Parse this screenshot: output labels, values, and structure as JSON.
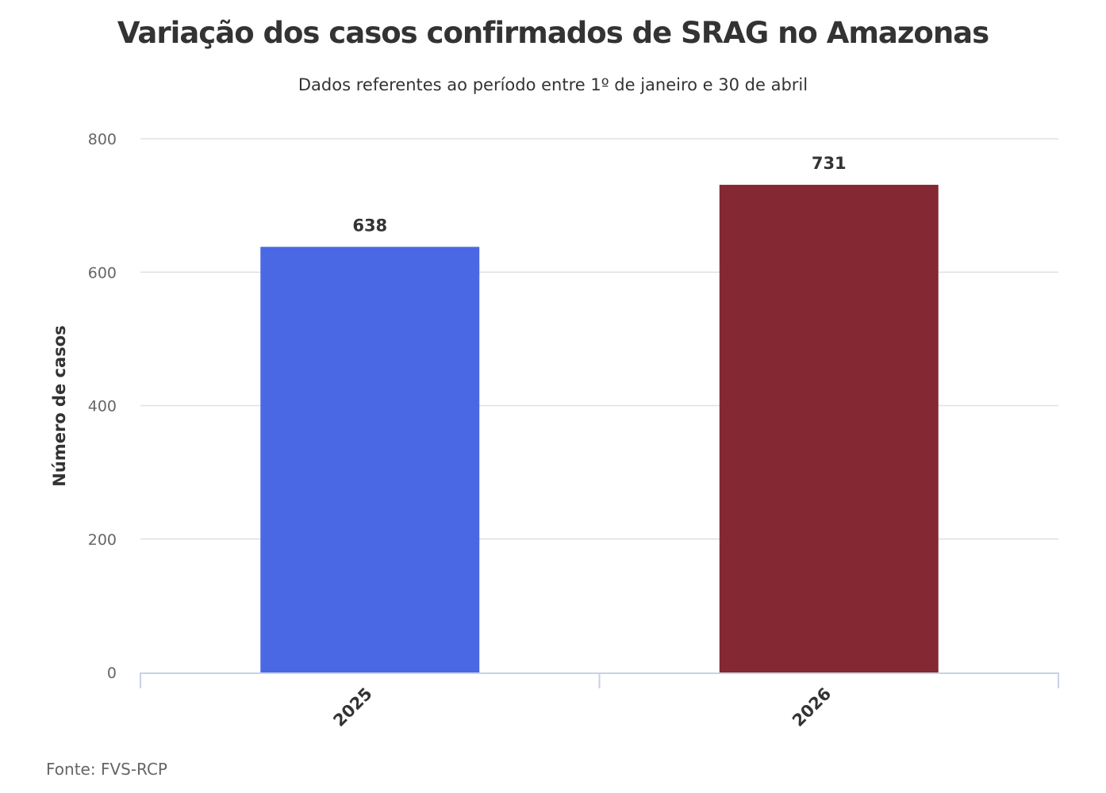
{
  "chart_data": {
    "type": "bar",
    "title": "Variação dos casos confirmados de SRAG no Amazonas",
    "subtitle": "Dados referentes ao período entre 1º de janeiro e 30 de abril",
    "ylabel": "Número de casos",
    "xlabel": "",
    "categories": [
      "2025",
      "2026"
    ],
    "values": [
      638,
      731
    ],
    "colors": [
      "#4a68e3",
      "#842833"
    ],
    "ylim": [
      0,
      800
    ],
    "yticks": [
      0,
      200,
      400,
      600,
      800
    ],
    "grid": true,
    "legend": "none"
  },
  "source": "Fonte: FVS-RCP"
}
